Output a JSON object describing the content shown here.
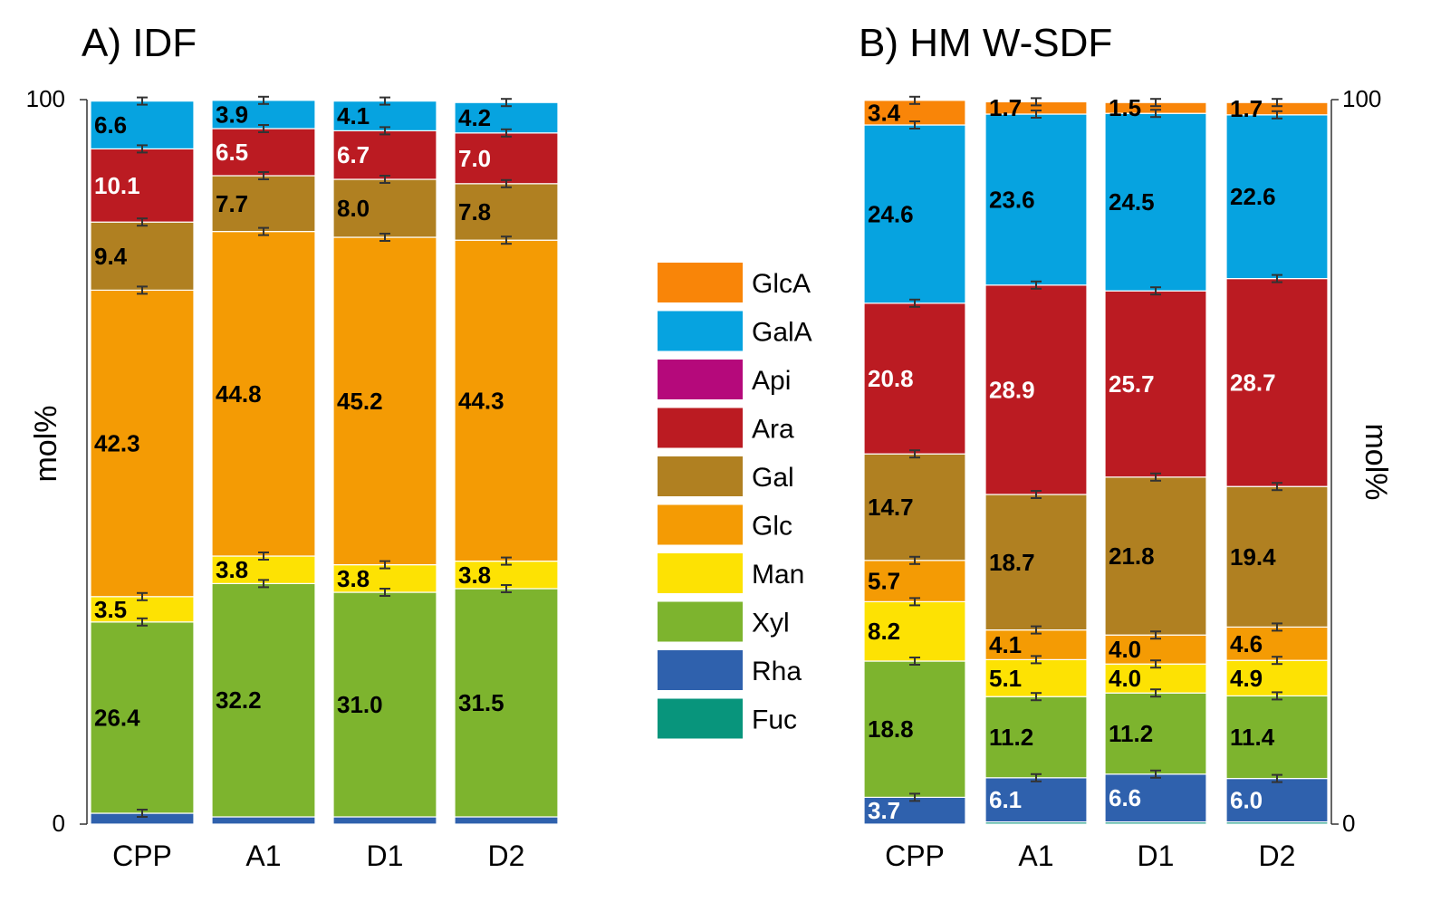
{
  "chart_data": [
    {
      "type": "bar",
      "stacked": true,
      "title": "A) IDF",
      "ylabel": "mol%",
      "ylim": [
        0,
        100
      ],
      "yticks": [
        "0",
        "100"
      ],
      "yaxis_side": "left",
      "categories": [
        "CPP",
        "A1",
        "D1",
        "D2"
      ],
      "series": [
        {
          "name": "Rha",
          "values": [
            1.5,
            1.0,
            1.0,
            1.0
          ],
          "labels": [
            "",
            "",
            "",
            ""
          ],
          "label_color": "#000000"
        },
        {
          "name": "Xyl",
          "values": [
            26.4,
            32.2,
            31.0,
            31.5
          ],
          "labels": [
            "26.4",
            "32.2",
            "31.0",
            "31.5"
          ],
          "label_color": "#000000"
        },
        {
          "name": "Man",
          "values": [
            3.5,
            3.8,
            3.8,
            3.8
          ],
          "labels": [
            "3.5",
            "3.8",
            "3.8",
            "3.8"
          ],
          "label_color": "#000000"
        },
        {
          "name": "Glc",
          "values": [
            42.3,
            44.8,
            45.2,
            44.3
          ],
          "labels": [
            "42.3",
            "44.8",
            "45.2",
            "44.3"
          ],
          "label_color": "#000000"
        },
        {
          "name": "Gal",
          "values": [
            9.4,
            7.7,
            8.0,
            7.8
          ],
          "labels": [
            "9.4",
            "7.7",
            "8.0",
            "7.8"
          ],
          "label_color": "#000000"
        },
        {
          "name": "Ara",
          "values": [
            10.1,
            6.5,
            6.7,
            7.0
          ],
          "labels": [
            "10.1",
            "6.5",
            "6.7",
            "7.0"
          ],
          "label_color": "#ffffff"
        },
        {
          "name": "GalA",
          "values": [
            6.6,
            3.9,
            4.1,
            4.2
          ],
          "labels": [
            "6.6",
            "3.9",
            "4.1",
            "4.2"
          ],
          "label_color": "#000000"
        }
      ]
    },
    {
      "type": "bar",
      "stacked": true,
      "title": "B) HM W-SDF",
      "ylabel": "mol%",
      "ylim": [
        0,
        100
      ],
      "yticks": [
        "0",
        "100"
      ],
      "yaxis_side": "right",
      "categories": [
        "CPP",
        "A1",
        "D1",
        "D2"
      ],
      "series": [
        {
          "name": "Fuc",
          "values": [
            0.0,
            0.3,
            0.3,
            0.3
          ],
          "labels": [
            "",
            "",
            "",
            ""
          ],
          "label_color": "#000000"
        },
        {
          "name": "Rha",
          "values": [
            3.7,
            6.1,
            6.6,
            6.0
          ],
          "labels": [
            "3.7",
            "6.1",
            "6.6",
            "6.0"
          ],
          "label_color": "#ffffff"
        },
        {
          "name": "Xyl",
          "values": [
            18.8,
            11.2,
            11.2,
            11.4
          ],
          "labels": [
            "18.8",
            "11.2",
            "11.2",
            "11.4"
          ],
          "label_color": "#000000"
        },
        {
          "name": "Man",
          "values": [
            8.2,
            5.1,
            4.0,
            4.9
          ],
          "labels": [
            "8.2",
            "5.1",
            "4.0",
            "4.9"
          ],
          "label_color": "#000000"
        },
        {
          "name": "Glc",
          "values": [
            5.7,
            4.1,
            4.0,
            4.6
          ],
          "labels": [
            "5.7",
            "4.1",
            "4.0",
            "4.6"
          ],
          "label_color": "#000000"
        },
        {
          "name": "Gal",
          "values": [
            14.7,
            18.7,
            21.8,
            19.4
          ],
          "labels": [
            "14.7",
            "18.7",
            "21.8",
            "19.4"
          ],
          "label_color": "#000000"
        },
        {
          "name": "Ara",
          "values": [
            20.8,
            28.9,
            25.7,
            28.7
          ],
          "labels": [
            "20.8",
            "28.9",
            "25.7",
            "28.7"
          ],
          "label_color": "#ffffff"
        },
        {
          "name": "GalA",
          "values": [
            24.6,
            23.6,
            24.5,
            22.6
          ],
          "labels": [
            "24.6",
            "23.6",
            "24.5",
            "22.6"
          ],
          "label_color": "#000000"
        },
        {
          "name": "GlcA",
          "values": [
            3.4,
            1.7,
            1.5,
            1.7
          ],
          "labels": [
            "3.4",
            "1.7",
            "1.5",
            "1.7"
          ],
          "label_color": "#000000"
        }
      ]
    }
  ],
  "legend": {
    "placement": "center",
    "items": [
      {
        "name": "GlcA",
        "color": "#f98508"
      },
      {
        "name": "GalA",
        "color": "#06a3e0"
      },
      {
        "name": "Api",
        "color": "#b5097b"
      },
      {
        "name": "Ara",
        "color": "#bb1b22"
      },
      {
        "name": "Gal",
        "color": "#b08021"
      },
      {
        "name": "Glc",
        "color": "#f49b04"
      },
      {
        "name": "Man",
        "color": "#fde203"
      },
      {
        "name": "Xyl",
        "color": "#7db42e"
      },
      {
        "name": "Rha",
        "color": "#2f61ad"
      },
      {
        "name": "Fuc",
        "color": "#08957c"
      }
    ]
  }
}
